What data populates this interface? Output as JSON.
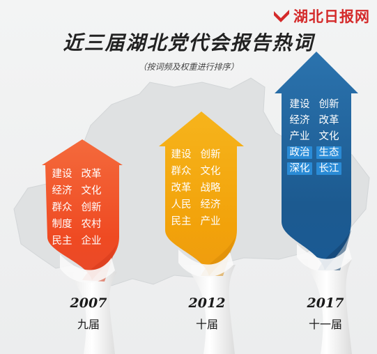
{
  "brand": {
    "name": "湖北日报网",
    "logo_color": "#d42a2a"
  },
  "title": "近三届湖北党代会报告热词",
  "subtitle": "（按词频及权重进行排序）",
  "colors": {
    "orange": "#f0502a",
    "yellow": "#f2a80c",
    "blue": "#1f5f96",
    "highlight": "#2a8bd6"
  },
  "congresses": [
    {
      "year": "2007",
      "term": "九届",
      "words": [
        "建设",
        "改革",
        "经济",
        "文化",
        "群众",
        "创新",
        "制度",
        "农村",
        "民主",
        "企业"
      ],
      "highlighted": []
    },
    {
      "year": "2012",
      "term": "十届",
      "words": [
        "建设",
        "创新",
        "群众",
        "文化",
        "改革",
        "战略",
        "人民",
        "经济",
        "民主",
        "产业"
      ],
      "highlighted": []
    },
    {
      "year": "2017",
      "term": "十一届",
      "words": [
        "建设",
        "创新",
        "经济",
        "改革",
        "产业",
        "文化",
        "政治",
        "生态",
        "深化",
        "长江"
      ],
      "highlighted": [
        6,
        7,
        8,
        9
      ]
    }
  ]
}
